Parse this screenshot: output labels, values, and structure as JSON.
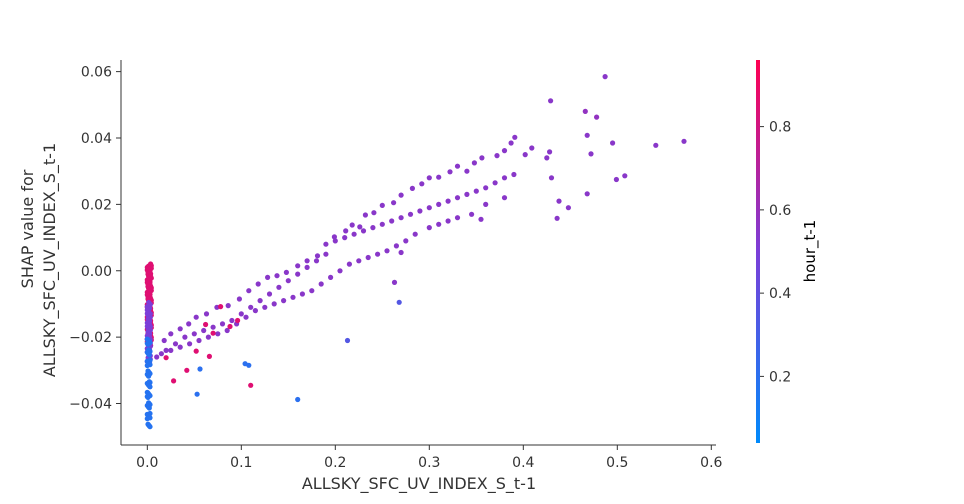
{
  "chart_data": {
    "type": "scatter",
    "title": "",
    "xlabel": "ALLSKY_SFC_UV_INDEX_S_t-1",
    "ylabel_line1": "SHAP value for",
    "ylabel_line2": "ALLSKY_SFC_UV_INDEX_S_t-1",
    "xlim": [
      -0.028,
      0.605
    ],
    "ylim": [
      -0.0525,
      0.0635
    ],
    "xticks": [
      {
        "value": 0.0,
        "label": "0.0"
      },
      {
        "value": 0.1,
        "label": "0.1"
      },
      {
        "value": 0.2,
        "label": "0.2"
      },
      {
        "value": 0.3,
        "label": "0.3"
      },
      {
        "value": 0.4,
        "label": "0.4"
      },
      {
        "value": 0.5,
        "label": "0.5"
      },
      {
        "value": 0.6,
        "label": "0.6"
      }
    ],
    "yticks": [
      {
        "value": -0.04,
        "label": "−0.04"
      },
      {
        "value": -0.02,
        "label": "−0.02"
      },
      {
        "value": 0.0,
        "label": "0.00"
      },
      {
        "value": 0.02,
        "label": "0.02"
      },
      {
        "value": 0.04,
        "label": "0.04"
      },
      {
        "value": 0.06,
        "label": "0.06"
      }
    ],
    "colorbar": {
      "label": "hour_t-1",
      "range": [
        0.04,
        0.96
      ],
      "ticks": [
        {
          "value": 0.2,
          "label": "0.2"
        },
        {
          "value": 0.4,
          "label": "0.4"
        },
        {
          "value": 0.6,
          "label": "0.6"
        },
        {
          "value": 0.8,
          "label": "0.8"
        }
      ],
      "colormap": [
        "#008afb",
        "#7b3ed8",
        "#ff0052"
      ]
    },
    "grid": false,
    "points": [
      [
        0.571,
        0.039,
        0.55
      ],
      [
        0.541,
        0.0378,
        0.55
      ],
      [
        0.487,
        0.0585,
        0.55
      ],
      [
        0.478,
        0.0463,
        0.58
      ],
      [
        0.466,
        0.048,
        0.58
      ],
      [
        0.468,
        0.0408,
        0.55
      ],
      [
        0.472,
        0.0352,
        0.55
      ],
      [
        0.495,
        0.0385,
        0.55
      ],
      [
        0.499,
        0.0275,
        0.55
      ],
      [
        0.508,
        0.0286,
        0.55
      ],
      [
        0.468,
        0.0232,
        0.55
      ],
      [
        0.429,
        0.0512,
        0.55
      ],
      [
        0.428,
        0.0358,
        0.55
      ],
      [
        0.425,
        0.034,
        0.55
      ],
      [
        0.43,
        0.028,
        0.55
      ],
      [
        0.438,
        0.021,
        0.55
      ],
      [
        0.448,
        0.019,
        0.55
      ],
      [
        0.436,
        0.0158,
        0.55
      ],
      [
        0.409,
        0.037,
        0.55
      ],
      [
        0.402,
        0.035,
        0.55
      ],
      [
        0.391,
        0.0402,
        0.55
      ],
      [
        0.387,
        0.0385,
        0.55
      ],
      [
        0.38,
        0.0362,
        0.55
      ],
      [
        0.372,
        0.0347,
        0.55
      ],
      [
        0.356,
        0.034,
        0.55
      ],
      [
        0.348,
        0.0325,
        0.55
      ],
      [
        0.34,
        0.03,
        0.55
      ],
      [
        0.33,
        0.0315,
        0.55
      ],
      [
        0.322,
        0.0298,
        0.55
      ],
      [
        0.31,
        0.0282,
        0.55
      ],
      [
        0.3,
        0.028,
        0.55
      ],
      [
        0.292,
        0.0262,
        0.55
      ],
      [
        0.282,
        0.0248,
        0.55
      ],
      [
        0.27,
        0.0228,
        0.55
      ],
      [
        0.262,
        0.0205,
        0.55
      ],
      [
        0.25,
        0.0197,
        0.55
      ],
      [
        0.241,
        0.0175,
        0.55
      ],
      [
        0.232,
        0.0168,
        0.55
      ],
      [
        0.226,
        0.0132,
        0.55
      ],
      [
        0.218,
        0.0138,
        0.55
      ],
      [
        0.211,
        0.012,
        0.55
      ],
      [
        0.199,
        0.0102,
        0.55
      ],
      [
        0.19,
        0.008,
        0.55
      ],
      [
        0.181,
        0.0045,
        0.55
      ],
      [
        0.17,
        0.003,
        0.55
      ],
      [
        0.16,
        0.0015,
        0.55
      ],
      [
        0.148,
        -0.0005,
        0.55
      ],
      [
        0.138,
        -0.0015,
        0.55
      ],
      [
        0.128,
        -0.002,
        0.55
      ],
      [
        0.118,
        -0.004,
        0.55
      ],
      [
        0.108,
        -0.006,
        0.55
      ],
      [
        0.098,
        -0.0085,
        0.55
      ],
      [
        0.086,
        -0.0105,
        0.55
      ],
      [
        0.074,
        -0.011,
        0.55
      ],
      [
        0.063,
        -0.013,
        0.55
      ],
      [
        0.052,
        -0.014,
        0.55
      ],
      [
        0.044,
        -0.016,
        0.55
      ],
      [
        0.035,
        -0.0175,
        0.55
      ],
      [
        0.025,
        -0.019,
        0.55
      ],
      [
        0.018,
        -0.021,
        0.55
      ],
      [
        0.39,
        0.029,
        0.55
      ],
      [
        0.38,
        0.028,
        0.55
      ],
      [
        0.37,
        0.0265,
        0.55
      ],
      [
        0.36,
        0.025,
        0.55
      ],
      [
        0.35,
        0.024,
        0.55
      ],
      [
        0.34,
        0.023,
        0.55
      ],
      [
        0.33,
        0.022,
        0.55
      ],
      [
        0.32,
        0.021,
        0.55
      ],
      [
        0.31,
        0.02,
        0.55
      ],
      [
        0.3,
        0.019,
        0.55
      ],
      [
        0.29,
        0.018,
        0.55
      ],
      [
        0.28,
        0.017,
        0.55
      ],
      [
        0.27,
        0.016,
        0.55
      ],
      [
        0.26,
        0.015,
        0.55
      ],
      [
        0.25,
        0.014,
        0.55
      ],
      [
        0.24,
        0.013,
        0.55
      ],
      [
        0.23,
        0.012,
        0.55
      ],
      [
        0.22,
        0.011,
        0.55
      ],
      [
        0.21,
        0.01,
        0.55
      ],
      [
        0.2,
        0.009,
        0.55
      ],
      [
        0.19,
        0.005,
        0.55
      ],
      [
        0.18,
        0.003,
        0.55
      ],
      [
        0.17,
        0.001,
        0.55
      ],
      [
        0.16,
        -0.001,
        0.55
      ],
      [
        0.15,
        -0.003,
        0.55
      ],
      [
        0.14,
        -0.005,
        0.55
      ],
      [
        0.13,
        -0.007,
        0.55
      ],
      [
        0.12,
        -0.009,
        0.55
      ],
      [
        0.11,
        -0.011,
        0.55
      ],
      [
        0.1,
        -0.013,
        0.55
      ],
      [
        0.09,
        -0.015,
        0.55
      ],
      [
        0.08,
        -0.016,
        0.55
      ],
      [
        0.07,
        -0.017,
        0.55
      ],
      [
        0.06,
        -0.018,
        0.55
      ],
      [
        0.05,
        -0.019,
        0.55
      ],
      [
        0.04,
        -0.02,
        0.55
      ],
      [
        0.03,
        -0.022,
        0.55
      ],
      [
        0.02,
        -0.024,
        0.55
      ],
      [
        0.01,
        -0.026,
        0.55
      ],
      [
        0.38,
        0.022,
        0.55
      ],
      [
        0.36,
        0.02,
        0.55
      ],
      [
        0.355,
        0.0155,
        0.55
      ],
      [
        0.345,
        0.017,
        0.55
      ],
      [
        0.33,
        0.016,
        0.55
      ],
      [
        0.32,
        0.015,
        0.55
      ],
      [
        0.31,
        0.014,
        0.55
      ],
      [
        0.3,
        0.013,
        0.55
      ],
      [
        0.285,
        0.011,
        0.55
      ],
      [
        0.275,
        0.009,
        0.55
      ],
      [
        0.265,
        0.0075,
        0.55
      ],
      [
        0.255,
        0.006,
        0.55
      ],
      [
        0.245,
        0.005,
        0.55
      ],
      [
        0.235,
        0.004,
        0.55
      ],
      [
        0.225,
        0.003,
        0.55
      ],
      [
        0.215,
        0.002,
        0.55
      ],
      [
        0.205,
        0.0,
        0.55
      ],
      [
        0.195,
        -0.002,
        0.55
      ],
      [
        0.185,
        -0.004,
        0.55
      ],
      [
        0.175,
        -0.006,
        0.55
      ],
      [
        0.165,
        -0.007,
        0.55
      ],
      [
        0.155,
        -0.008,
        0.55
      ],
      [
        0.145,
        -0.009,
        0.55
      ],
      [
        0.135,
        -0.01,
        0.55
      ],
      [
        0.125,
        -0.011,
        0.55
      ],
      [
        0.115,
        -0.012,
        0.55
      ],
      [
        0.105,
        -0.014,
        0.55
      ],
      [
        0.095,
        -0.016,
        0.55
      ],
      [
        0.085,
        -0.018,
        0.55
      ],
      [
        0.075,
        -0.019,
        0.55
      ],
      [
        0.065,
        -0.02,
        0.55
      ],
      [
        0.055,
        -0.021,
        0.55
      ],
      [
        0.045,
        -0.022,
        0.55
      ],
      [
        0.035,
        -0.023,
        0.55
      ],
      [
        0.025,
        -0.024,
        0.55
      ],
      [
        0.015,
        -0.025,
        0.55
      ],
      [
        0.16,
        -0.0388,
        0.2
      ],
      [
        0.053,
        -0.0372,
        0.2
      ],
      [
        0.108,
        -0.0285,
        0.2
      ],
      [
        0.104,
        -0.028,
        0.2
      ],
      [
        0.056,
        -0.0296,
        0.2
      ],
      [
        0.11,
        -0.0345,
        0.85
      ],
      [
        0.268,
        -0.0095,
        0.35
      ],
      [
        0.213,
        -0.021,
        0.35
      ],
      [
        0.263,
        -0.0035,
        0.55
      ],
      [
        0.27,
        0.0055,
        0.55
      ],
      [
        0.066,
        -0.0258,
        0.85
      ],
      [
        0.052,
        -0.0242,
        0.85
      ],
      [
        0.028,
        -0.0332,
        0.85
      ],
      [
        0.042,
        -0.03,
        0.85
      ],
      [
        0.02,
        -0.0262,
        0.85
      ],
      [
        0.07,
        -0.0188,
        0.85
      ],
      [
        0.062,
        -0.0162,
        0.85
      ],
      [
        0.088,
        -0.0168,
        0.85
      ],
      [
        0.096,
        -0.015,
        0.85
      ],
      [
        0.078,
        -0.0108,
        0.85
      ]
    ]
  }
}
